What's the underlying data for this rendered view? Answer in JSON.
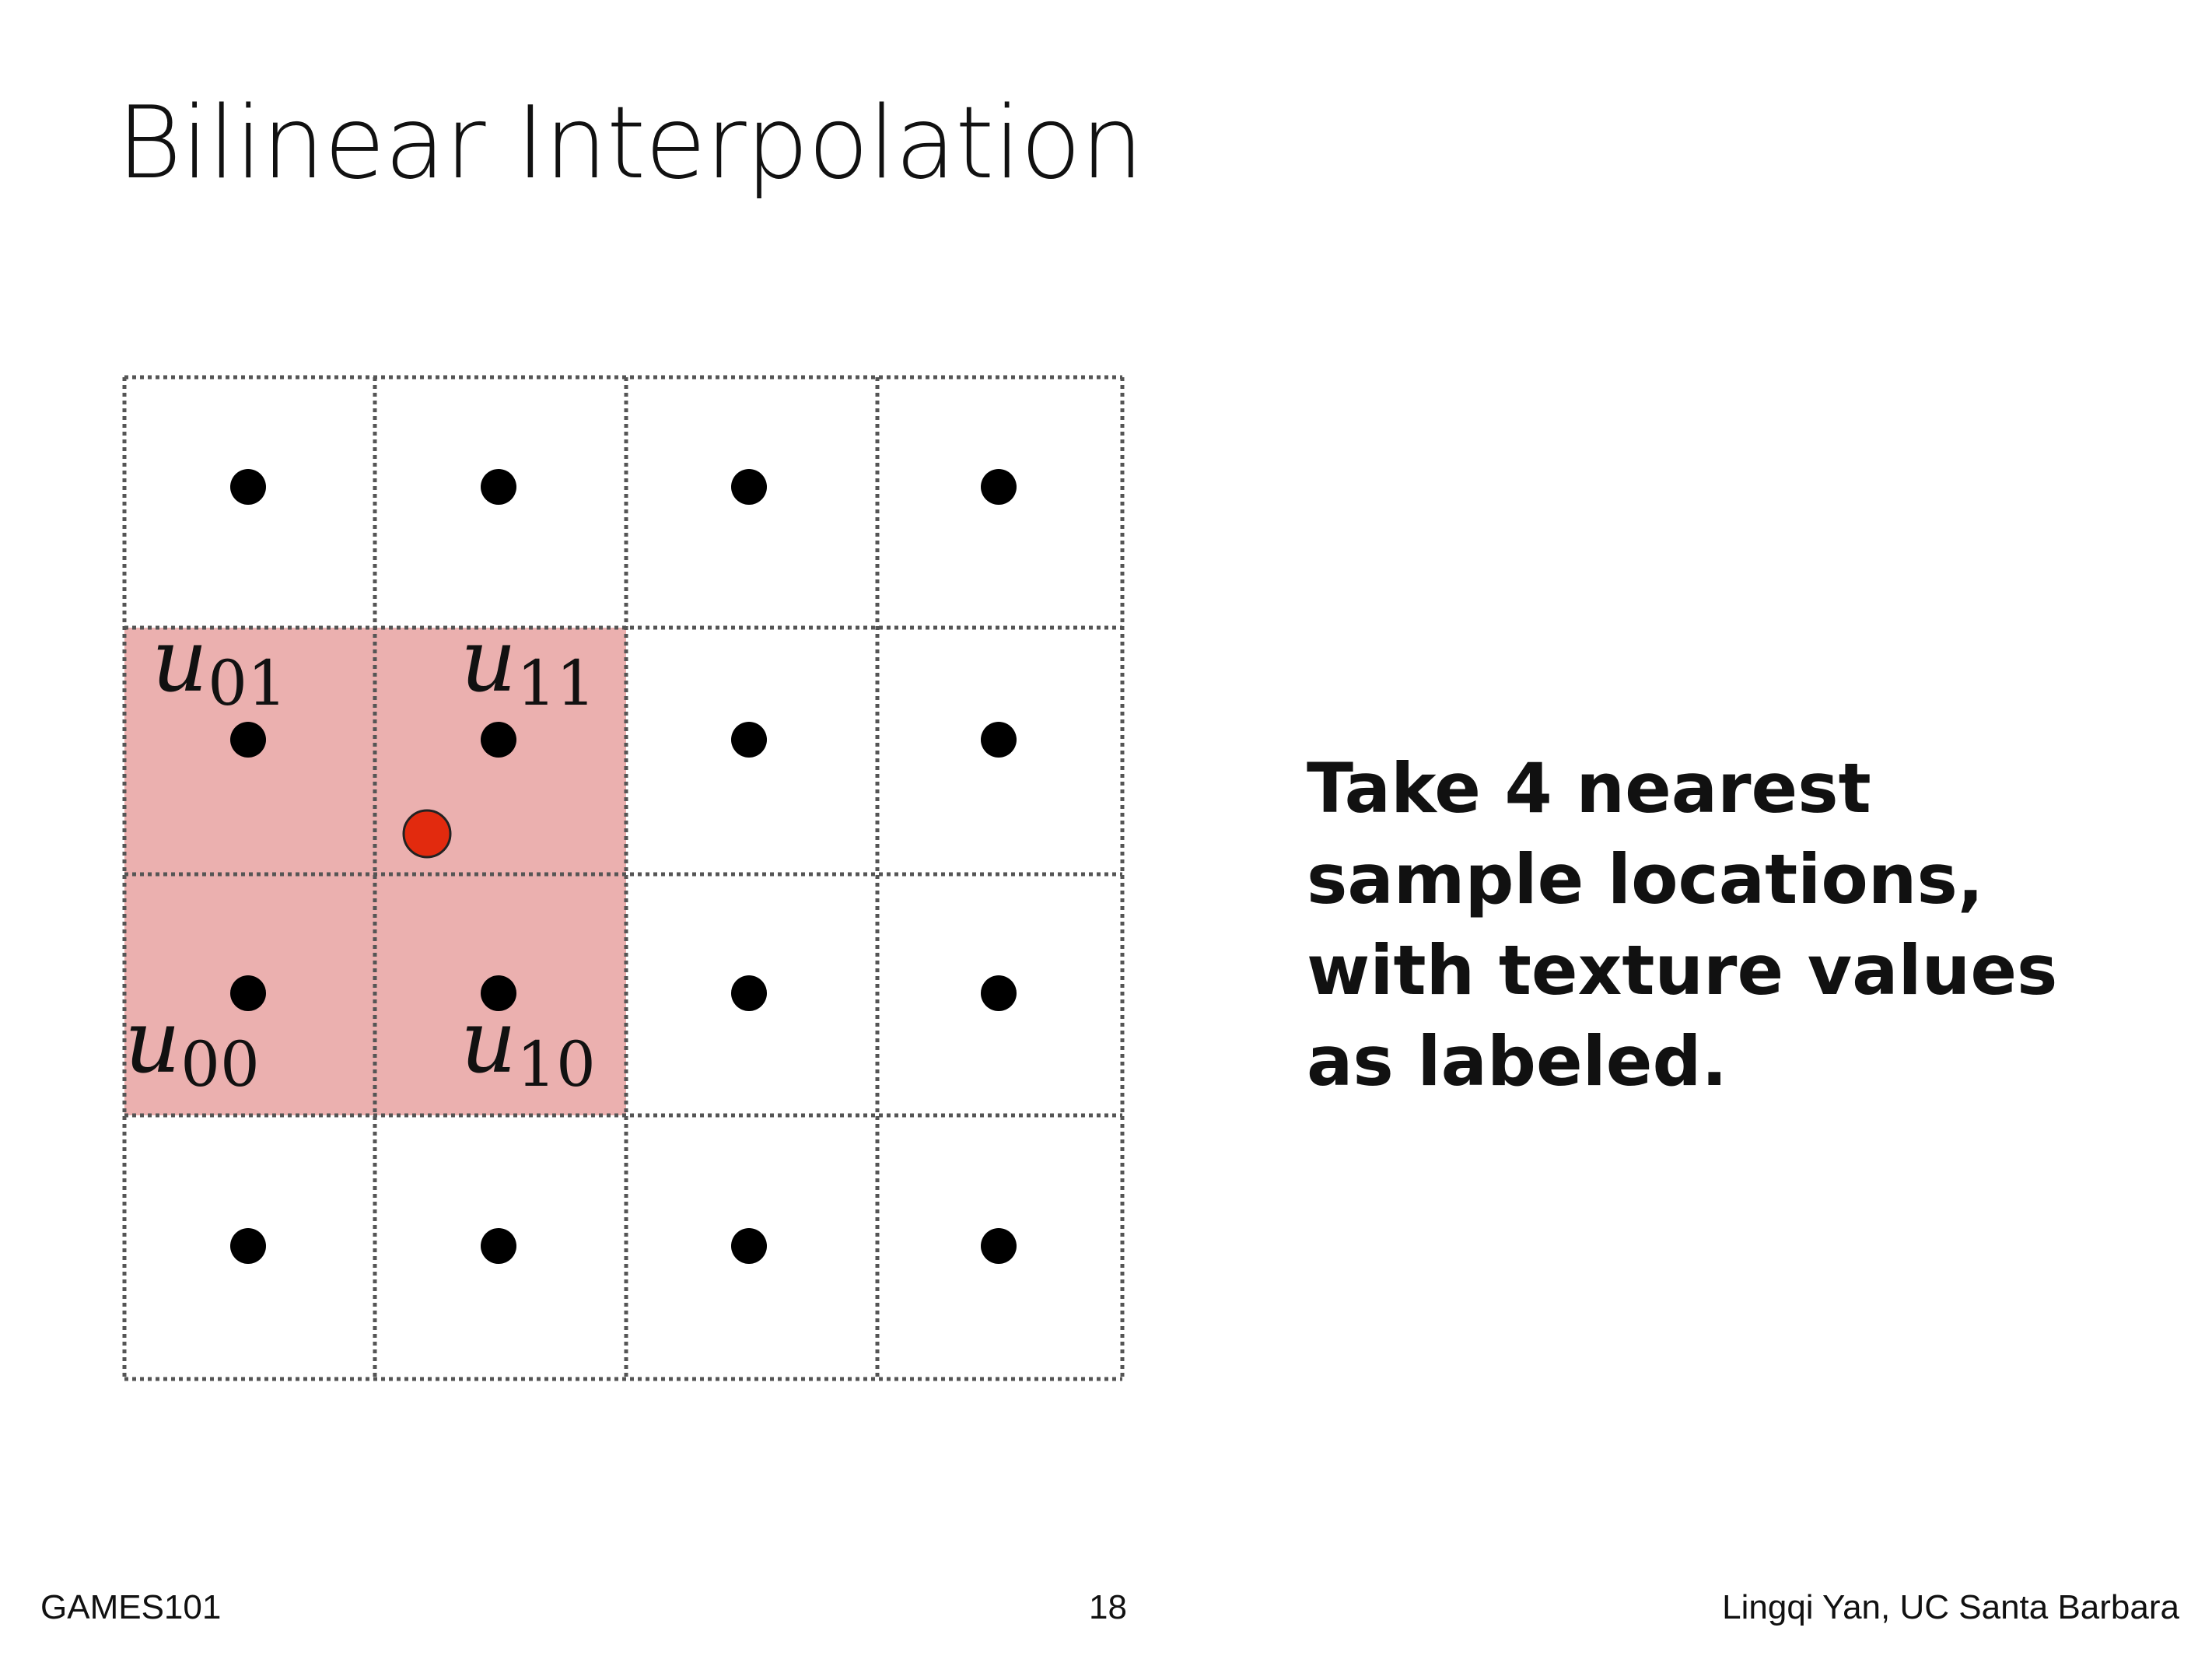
{
  "slide": {
    "title": "Bilinear Interpolation",
    "caption": "Take 4 nearest sample locations, with texture values as labeled."
  },
  "diagram": {
    "grid_columns": 4,
    "grid_rows": 4,
    "highlight_color": "#ebb0af",
    "sample_color": "#000000",
    "query_point_color": "#e22a0e",
    "labels": [
      {
        "base": "u",
        "sub": "01"
      },
      {
        "base": "u",
        "sub": "11"
      },
      {
        "base": "u",
        "sub": "00"
      },
      {
        "base": "u",
        "sub": "10"
      }
    ]
  },
  "footer": {
    "left": "GAMES101",
    "page_number": "18",
    "right": "Lingqi Yan, UC Santa Barbara"
  }
}
